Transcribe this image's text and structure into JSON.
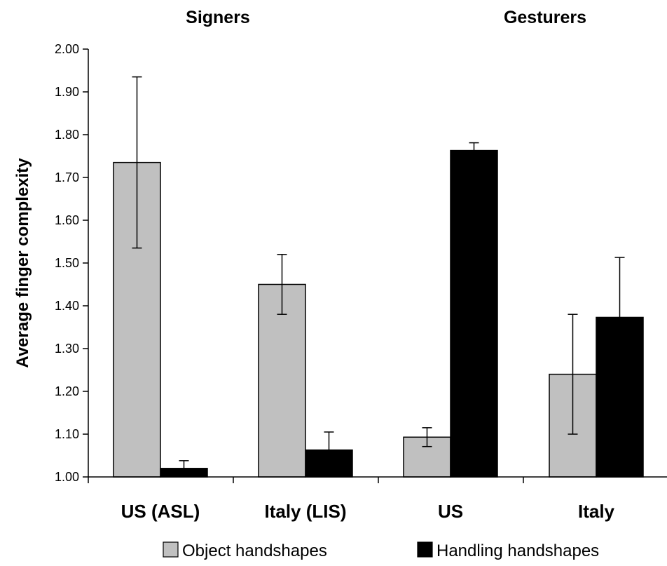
{
  "chart_data": {
    "type": "bar",
    "ylabel": "Average finger complexity",
    "ylim": [
      1.0,
      2.0
    ],
    "yticks": [
      1.0,
      1.1,
      1.2,
      1.3,
      1.4,
      1.5,
      1.6,
      1.7,
      1.8,
      1.9,
      2.0
    ],
    "groups": [
      {
        "label": "Signers",
        "categories": [
          "US (ASL)",
          "Italy (LIS)"
        ]
      },
      {
        "label": "Gesturers",
        "categories": [
          "US",
          "Italy"
        ]
      }
    ],
    "categories": [
      "US (ASL)",
      "Italy (LIS)",
      "US",
      "Italy"
    ],
    "series": [
      {
        "name": "Object handshapes",
        "color": "#c0c0c0",
        "values": [
          1.735,
          1.45,
          1.093,
          1.24
        ],
        "errors": [
          0.2,
          0.07,
          0.022,
          0.14
        ]
      },
      {
        "name": "Handling handshapes",
        "color": "#000000",
        "values": [
          1.02,
          1.063,
          1.763,
          1.373
        ],
        "errors": [
          0.018,
          0.042,
          0.018,
          0.14
        ]
      }
    ],
    "legend_position": "bottom",
    "grid": false
  }
}
